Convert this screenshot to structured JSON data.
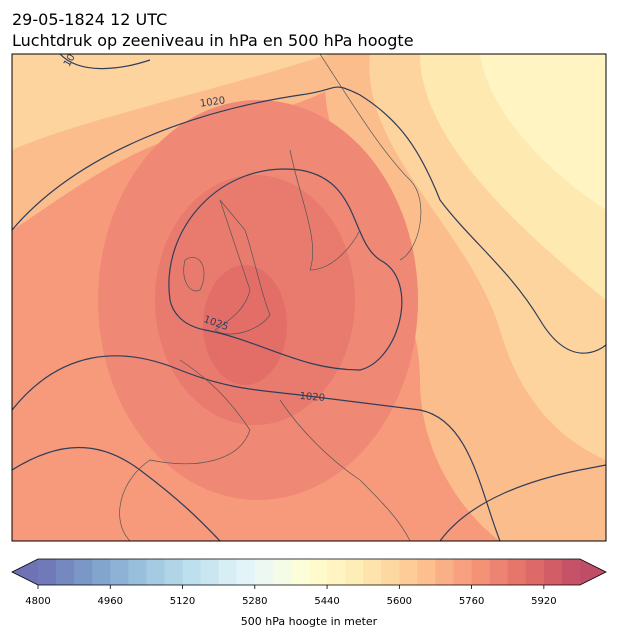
{
  "header": {
    "title": "29-05-1824 12 UTC",
    "subtitle": "Luchtdruk op zeeniveau in hPa en 500 hPa hoogte"
  },
  "map": {
    "contour_labels": [
      "1020",
      "1025",
      "1020",
      "10"
    ]
  },
  "colorbar": {
    "label": "500 hPa hoogte in meter",
    "lim": [
      4800,
      6000
    ],
    "ticks": [
      4800,
      4960,
      5120,
      5280,
      5440,
      5600,
      5760,
      5920
    ]
  }
}
